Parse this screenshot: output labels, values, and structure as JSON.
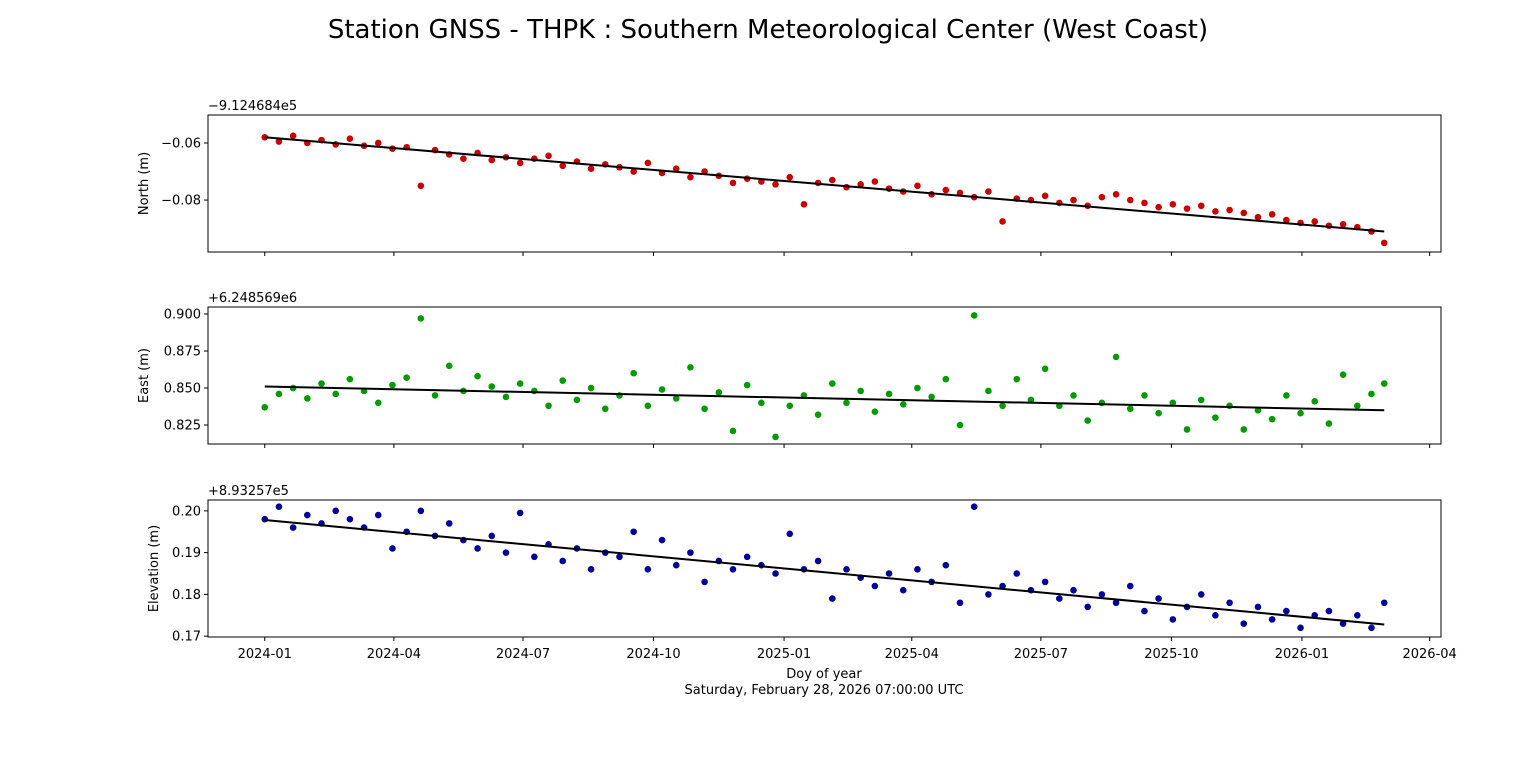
{
  "chart_data": {
    "type": "scatter",
    "title": "Station GNSS - THPK : Southern Meteorological Center (West Coast)",
    "xlabel": "Doy of year",
    "xlabel_sub": "Saturday, February 28, 2026 07:00:00 UTC",
    "x_start_date": "2024-01-01",
    "x_unit": "days since 2024-01-01",
    "xlim_days": [
      -40,
      829
    ],
    "x_ticks": [
      {
        "label": "2024-01",
        "day": 0
      },
      {
        "label": "2024-04",
        "day": 91
      },
      {
        "label": "2024-07",
        "day": 182
      },
      {
        "label": "2024-10",
        "day": 274
      },
      {
        "label": "2025-01",
        "day": 366
      },
      {
        "label": "2025-04",
        "day": 456
      },
      {
        "label": "2025-07",
        "day": 547
      },
      {
        "label": "2025-10",
        "day": 639
      },
      {
        "label": "2026-01",
        "day": 731
      },
      {
        "label": "2026-04",
        "day": 821
      }
    ],
    "days": [
      0,
      10,
      20,
      30,
      40,
      50,
      60,
      70,
      80,
      90,
      100,
      110,
      120,
      130,
      140,
      150,
      160,
      170,
      180,
      190,
      200,
      210,
      220,
      230,
      240,
      250,
      260,
      270,
      280,
      290,
      300,
      310,
      320,
      330,
      340,
      350,
      360,
      370,
      380,
      390,
      400,
      410,
      420,
      430,
      440,
      450,
      460,
      470,
      480,
      490,
      500,
      510,
      520,
      530,
      540,
      550,
      560,
      570,
      580,
      590,
      600,
      610,
      620,
      630,
      640,
      650,
      660,
      670,
      680,
      690,
      700,
      710,
      720,
      730,
      740,
      750,
      760,
      770,
      780,
      789
    ],
    "series": [
      {
        "name": "North",
        "ylabel": "North (m)",
        "offset_label": "−9.124684e5",
        "color": "#c80000",
        "ylim": [
          -0.0982,
          -0.0502
        ],
        "y_ticks": [
          {
            "label": "−0.06",
            "value": -0.06
          },
          {
            "label": "−0.08",
            "value": -0.08
          }
        ],
        "trend": [
          -0.058,
          -0.091
        ],
        "values": [
          -0.058,
          -0.0595,
          -0.0575,
          -0.06,
          -0.059,
          -0.0605,
          -0.0585,
          -0.061,
          -0.06,
          -0.062,
          -0.0615,
          -0.075,
          -0.0625,
          -0.064,
          -0.0655,
          -0.0635,
          -0.066,
          -0.065,
          -0.067,
          -0.0655,
          -0.0645,
          -0.068,
          -0.0665,
          -0.069,
          -0.0675,
          -0.0685,
          -0.07,
          -0.067,
          -0.0705,
          -0.069,
          -0.072,
          -0.07,
          -0.0715,
          -0.074,
          -0.0725,
          -0.0735,
          -0.0745,
          -0.072,
          -0.0815,
          -0.074,
          -0.073,
          -0.0755,
          -0.0745,
          -0.0735,
          -0.076,
          -0.077,
          -0.075,
          -0.078,
          -0.0765,
          -0.0775,
          -0.079,
          -0.077,
          -0.0875,
          -0.0795,
          -0.08,
          -0.0785,
          -0.081,
          -0.08,
          -0.082,
          -0.079,
          -0.078,
          -0.08,
          -0.081,
          -0.0825,
          -0.0815,
          -0.083,
          -0.082,
          -0.084,
          -0.0835,
          -0.0845,
          -0.086,
          -0.085,
          -0.087,
          -0.088,
          -0.0875,
          -0.089,
          -0.0885,
          -0.0895,
          -0.091,
          -0.095
        ]
      },
      {
        "name": "East",
        "ylabel": "East (m)",
        "offset_label": "+6.248569e6",
        "color": "#009a00",
        "ylim": [
          0.8122,
          0.9047
        ],
        "y_ticks": [
          {
            "label": "0.900",
            "value": 0.9
          },
          {
            "label": "0.875",
            "value": 0.875
          },
          {
            "label": "0.850",
            "value": 0.85
          },
          {
            "label": "0.825",
            "value": 0.825
          }
        ],
        "trend": [
          0.851,
          0.835
        ],
        "values": [
          0.837,
          0.846,
          0.85,
          0.843,
          0.853,
          0.846,
          0.856,
          0.848,
          0.84,
          0.852,
          0.857,
          0.897,
          0.845,
          0.865,
          0.848,
          0.858,
          0.851,
          0.844,
          0.853,
          0.848,
          0.838,
          0.855,
          0.842,
          0.85,
          0.836,
          0.845,
          0.86,
          0.838,
          0.849,
          0.843,
          0.864,
          0.836,
          0.847,
          0.821,
          0.852,
          0.84,
          0.817,
          0.838,
          0.845,
          0.832,
          0.853,
          0.84,
          0.848,
          0.834,
          0.846,
          0.839,
          0.85,
          0.844,
          0.856,
          0.825,
          0.899,
          0.848,
          0.838,
          0.856,
          0.842,
          0.863,
          0.838,
          0.845,
          0.828,
          0.84,
          0.871,
          0.836,
          0.845,
          0.833,
          0.84,
          0.822,
          0.842,
          0.83,
          0.838,
          0.822,
          0.835,
          0.829,
          0.845,
          0.833,
          0.841,
          0.826,
          0.859,
          0.838,
          0.846,
          0.853
        ]
      },
      {
        "name": "Elevation",
        "ylabel": "Elevation (m)",
        "offset_label": "+8.93257e5",
        "color": "#000099",
        "ylim": [
          0.1698,
          0.2026
        ],
        "y_ticks": [
          {
            "label": "0.20",
            "value": 0.2
          },
          {
            "label": "0.19",
            "value": 0.19
          },
          {
            "label": "0.18",
            "value": 0.18
          },
          {
            "label": "0.17",
            "value": 0.17
          }
        ],
        "trend": [
          0.1978,
          0.1728
        ],
        "values": [
          0.198,
          0.201,
          0.196,
          0.199,
          0.197,
          0.2,
          0.198,
          0.196,
          0.199,
          0.191,
          0.195,
          0.2,
          0.194,
          0.197,
          0.193,
          0.191,
          0.194,
          0.19,
          0.1995,
          0.189,
          0.192,
          0.188,
          0.191,
          0.186,
          0.19,
          0.189,
          0.195,
          0.186,
          0.193,
          0.187,
          0.19,
          0.183,
          0.188,
          0.186,
          0.189,
          0.187,
          0.185,
          0.1945,
          0.186,
          0.188,
          0.179,
          0.186,
          0.184,
          0.182,
          0.185,
          0.181,
          0.186,
          0.183,
          0.187,
          0.178,
          0.201,
          0.18,
          0.182,
          0.185,
          0.181,
          0.183,
          0.179,
          0.181,
          0.177,
          0.18,
          0.178,
          0.182,
          0.176,
          0.179,
          0.174,
          0.177,
          0.18,
          0.175,
          0.178,
          0.173,
          0.177,
          0.174,
          0.176,
          0.172,
          0.175,
          0.176,
          0.173,
          0.175,
          0.172,
          0.178
        ]
      }
    ]
  }
}
